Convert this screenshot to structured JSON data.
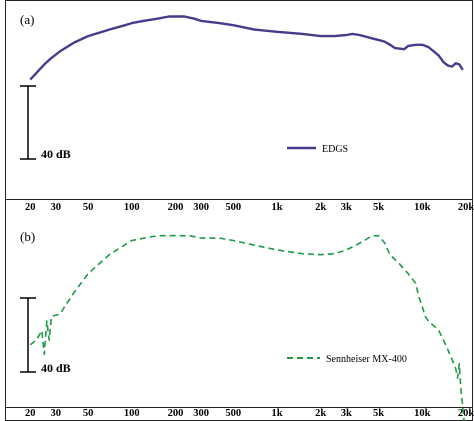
{
  "chart_data": [
    {
      "type": "line",
      "panel_label": "(a)",
      "xscale": "log",
      "xlim": [
        17,
        22000
      ],
      "ylim_db": [
        -42,
        9
      ],
      "x_ticks": [
        20,
        30,
        50,
        100,
        200,
        300,
        500,
        1000,
        2000,
        3000,
        5000,
        10000,
        20000
      ],
      "x_tick_labels": [
        "20",
        "30",
        "50",
        "100",
        "200",
        "300",
        "500",
        "1k",
        "2k",
        "3k",
        "5k",
        "10k",
        "20k"
      ],
      "scale_bar": {
        "label": "40 dB",
        "span_db": 40
      },
      "legend_position": "lower-right",
      "series": [
        {
          "name": "EDGS",
          "color": "#4b3a8c",
          "style": "solid",
          "x": [
            20,
            22,
            25,
            28,
            32,
            40,
            50,
            70,
            90,
            100,
            120,
            150,
            180,
            200,
            230,
            270,
            300,
            400,
            500,
            700,
            1000,
            1500,
            2000,
            2500,
            3000,
            3300,
            3700,
            4500,
            5500,
            6000,
            6500,
            7500,
            8000,
            9000,
            10000,
            11000,
            12000,
            13000,
            14000,
            15000,
            16000,
            17000,
            18000,
            19000
          ],
          "y": [
            -23,
            -20,
            -16,
            -13,
            -10,
            -6,
            -3,
            0,
            2,
            3,
            4,
            5,
            6,
            6,
            6,
            5,
            4,
            3,
            2,
            0,
            -1,
            -2,
            -3,
            -3,
            -2.5,
            -2,
            -2.5,
            -4,
            -5.5,
            -7,
            -8.5,
            -9,
            -7.5,
            -7,
            -7,
            -8,
            -10,
            -12,
            -15,
            -16.5,
            -17,
            -15.5,
            -16,
            -18.5
          ]
        }
      ]
    },
    {
      "type": "line",
      "panel_label": "(b)",
      "xscale": "log",
      "xlim": [
        17,
        22000
      ],
      "ylim_db": [
        -34,
        5
      ],
      "x_ticks": [
        20,
        30,
        50,
        100,
        200,
        300,
        500,
        1000,
        2000,
        3000,
        5000,
        10000,
        20000
      ],
      "x_tick_labels": [
        "20",
        "30",
        "50",
        "100",
        "200",
        "300",
        "500",
        "1k",
        "2k",
        "3k",
        "5k",
        "10k",
        "20k"
      ],
      "scale_bar": {
        "label": "40 dB",
        "span_db": 40
      },
      "legend_position": "lower-right",
      "series": [
        {
          "name": "Sennheiser MX-400",
          "color": "#1e9a45",
          "style": "dashed",
          "x": [
            20,
            22,
            24,
            25,
            26,
            27,
            28,
            32,
            40,
            50,
            70,
            100,
            150,
            200,
            250,
            300,
            400,
            500,
            700,
            1000,
            1500,
            2000,
            2500,
            3000,
            3500,
            4000,
            4500,
            5000,
            5500,
            6000,
            7000,
            8000,
            9000,
            9500,
            10000,
            10500,
            11000,
            12000,
            13000,
            14000,
            15000,
            16000,
            17000,
            17500,
            18000,
            18500,
            19000,
            19500
          ],
          "y": [
            -23,
            -22,
            -20,
            -25,
            -18,
            -22,
            -17,
            -16.5,
            -12,
            -8,
            -4,
            -1,
            0,
            0,
            0,
            -0.5,
            -0.5,
            -1,
            -2,
            -3,
            -3.8,
            -4,
            -3.8,
            -3,
            -2,
            -1,
            0,
            0,
            -1.5,
            -4,
            -6,
            -8,
            -10,
            -13,
            -15,
            -17,
            -18,
            -19,
            -20,
            -22,
            -24,
            -26,
            -28,
            -30,
            -27,
            -33,
            -36,
            -40
          ]
        }
      ]
    }
  ]
}
